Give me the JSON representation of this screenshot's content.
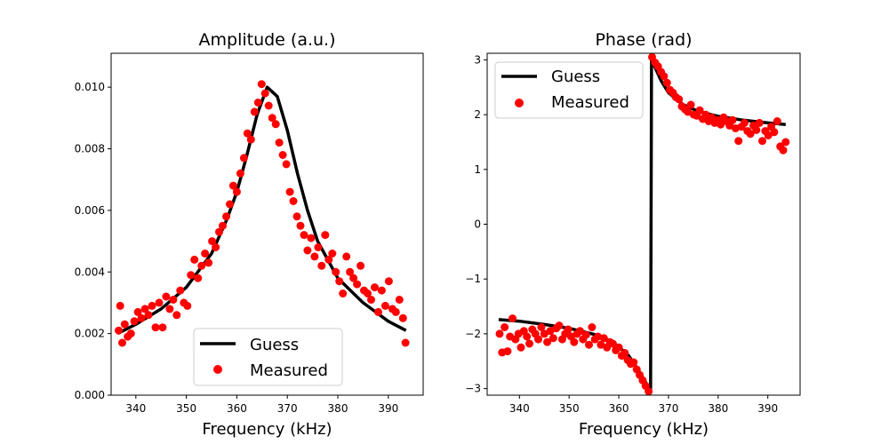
{
  "chart_data": [
    {
      "type": "scatter",
      "title": "Amplitude (a.u.)",
      "xlabel": "Frequency (kHz)",
      "ylabel": "",
      "xlim": [
        335.1,
        396.9
      ],
      "ylim": [
        0,
        0.0111
      ],
      "xticks": [
        340,
        350,
        360,
        370,
        380,
        390
      ],
      "xtick_labels": [
        "340",
        "350",
        "360",
        "370",
        "380",
        "390"
      ],
      "yticks": [
        0,
        0.002,
        0.004,
        0.006,
        0.008,
        0.01
      ],
      "ytick_labels": [
        "0.000",
        "0.002",
        "0.004",
        "0.006",
        "0.008",
        "0.010"
      ],
      "grid": false,
      "legend": {
        "position": "bottom-center",
        "entries": [
          "Guess",
          "Measured"
        ]
      },
      "series": [
        {
          "name": "Guess",
          "kind": "line",
          "color": "#000000",
          "x": [
            336.4,
            340,
            345,
            350,
            355,
            358,
            360,
            362,
            364,
            366,
            368,
            370,
            372,
            374,
            376,
            380,
            385,
            390,
            393.5
          ],
          "y": [
            0.002,
            0.0023,
            0.0028,
            0.0035,
            0.0046,
            0.0057,
            0.0066,
            0.0078,
            0.0091,
            0.01,
            0.0097,
            0.0086,
            0.0072,
            0.006,
            0.005,
            0.0038,
            0.003,
            0.0024,
            0.0021
          ]
        },
        {
          "name": "Measured",
          "kind": "scatter",
          "color": "#ff0000",
          "x": [
            336.6,
            336.9,
            337.3,
            337.8,
            338.4,
            339.0,
            339.7,
            340.4,
            341.1,
            341.8,
            342.5,
            343.2,
            343.9,
            344.6,
            345.3,
            346.0,
            346.7,
            347.4,
            348.1,
            348.8,
            349.5,
            350.2,
            350.9,
            351.6,
            352.3,
            353.0,
            353.7,
            354.4,
            355.1,
            355.8,
            356.5,
            357.2,
            357.9,
            358.6,
            359.3,
            360.0,
            360.7,
            361.4,
            362.1,
            362.8,
            363.5,
            364.2,
            364.9,
            365.6,
            366.3,
            367.0,
            367.7,
            368.4,
            369.1,
            369.8,
            370.5,
            371.2,
            371.9,
            372.6,
            373.3,
            374.0,
            374.7,
            375.4,
            376.1,
            376.8,
            377.5,
            378.2,
            378.9,
            379.6,
            380.3,
            381.0,
            381.7,
            382.4,
            383.1,
            383.8,
            384.5,
            385.2,
            385.9,
            386.6,
            387.3,
            388.0,
            388.7,
            389.4,
            390.1,
            390.8,
            391.5,
            392.2,
            392.9,
            393.4
          ],
          "y": [
            0.0021,
            0.0029,
            0.0017,
            0.0023,
            0.0019,
            0.002,
            0.0024,
            0.0027,
            0.0025,
            0.0028,
            0.0026,
            0.0029,
            0.0022,
            0.003,
            0.0022,
            0.0032,
            0.0028,
            0.0031,
            0.0026,
            0.0034,
            0.003,
            0.0029,
            0.0039,
            0.0044,
            0.0038,
            0.0042,
            0.0046,
            0.0043,
            0.005,
            0.0048,
            0.0053,
            0.0055,
            0.0058,
            0.0062,
            0.0068,
            0.0066,
            0.0072,
            0.0077,
            0.0085,
            0.0083,
            0.0092,
            0.0095,
            0.0101,
            0.0098,
            0.0094,
            0.009,
            0.0088,
            0.0082,
            0.0078,
            0.0075,
            0.0066,
            0.0063,
            0.0058,
            0.0055,
            0.0052,
            0.0047,
            0.0051,
            0.0045,
            0.0048,
            0.0042,
            0.0052,
            0.0044,
            0.0046,
            0.004,
            0.0037,
            0.0033,
            0.0045,
            0.004,
            0.0038,
            0.0036,
            0.0042,
            0.0034,
            0.0033,
            0.0031,
            0.0035,
            0.0027,
            0.0034,
            0.0029,
            0.0037,
            0.0028,
            0.0027,
            0.0031,
            0.0025,
            0.0017
          ]
        }
      ]
    },
    {
      "type": "scatter",
      "title": "Phase (rad)",
      "xlabel": "Frequency (kHz)",
      "ylabel": "",
      "xlim": [
        333.5,
        396.5
      ],
      "ylim": [
        -3.12,
        3.12
      ],
      "xticks": [
        340,
        350,
        360,
        370,
        380,
        390
      ],
      "xtick_labels": [
        "340",
        "350",
        "360",
        "370",
        "380",
        "390"
      ],
      "yticks": [
        -3,
        -2,
        -1,
        0,
        1,
        2,
        3
      ],
      "ytick_labels": [
        "−3",
        "−2",
        "−1",
        "0",
        "1",
        "2",
        "3"
      ],
      "grid": false,
      "legend": {
        "position": "top-left",
        "entries": [
          "Guess",
          "Measured"
        ]
      },
      "series": [
        {
          "name": "Guess",
          "kind": "line",
          "color": "#000000",
          "x": [
            335.8,
            340,
            345,
            350,
            355,
            358,
            360,
            362,
            364,
            365.5,
            366.2,
            366.4,
            366.6,
            367.3,
            368.5,
            370,
            373,
            376,
            380,
            385,
            390,
            393.6
          ],
          "y": [
            -1.74,
            -1.77,
            -1.83,
            -1.9,
            -2.01,
            -2.12,
            -2.24,
            -2.4,
            -2.67,
            -2.9,
            -3.02,
            -3.08,
            3.08,
            2.86,
            2.62,
            2.4,
            2.18,
            2.06,
            1.97,
            1.9,
            1.85,
            1.82
          ]
        },
        {
          "name": "Measured",
          "kind": "scatter",
          "color": "#ff0000",
          "x": [
            336.0,
            336.5,
            337.0,
            337.6,
            338.1,
            338.6,
            339.2,
            339.8,
            340.3,
            340.9,
            341.5,
            342.0,
            342.6,
            343.2,
            343.8,
            344.4,
            345.0,
            345.6,
            346.2,
            346.8,
            347.4,
            348.0,
            348.6,
            349.2,
            349.8,
            350.4,
            351.0,
            351.6,
            352.2,
            352.8,
            353.4,
            354.0,
            354.6,
            355.2,
            355.8,
            356.4,
            357.0,
            357.6,
            358.2,
            358.8,
            359.4,
            360.0,
            360.6,
            361.2,
            361.8,
            362.4,
            363.0,
            363.6,
            364.2,
            364.8,
            365.4,
            366.0,
            366.7,
            367.3,
            367.9,
            368.5,
            369.1,
            369.7,
            370.3,
            370.9,
            371.5,
            372.1,
            372.7,
            373.3,
            373.9,
            374.5,
            375.1,
            375.7,
            376.3,
            376.9,
            377.5,
            378.1,
            378.7,
            379.3,
            379.9,
            380.5,
            381.1,
            381.7,
            382.3,
            382.9,
            383.5,
            384.1,
            384.7,
            385.3,
            385.9,
            386.5,
            387.1,
            387.7,
            388.3,
            388.9,
            389.5,
            390.1,
            390.7,
            391.3,
            391.9,
            392.5,
            393.1,
            393.6
          ],
          "y": [
            -2.0,
            -2.34,
            -1.88,
            -2.32,
            -2.05,
            -1.72,
            -2.1,
            -2.0,
            -2.25,
            -1.95,
            -2.05,
            -2.18,
            -1.92,
            -2.0,
            -2.1,
            -1.88,
            -2.0,
            -2.15,
            -1.95,
            -2.08,
            -1.9,
            -1.85,
            -2.1,
            -2.0,
            -1.92,
            -2.05,
            -2.15,
            -2.0,
            -1.95,
            -2.1,
            -2.02,
            -2.2,
            -1.88,
            -2.1,
            -2.05,
            -2.2,
            -2.08,
            -2.25,
            -2.15,
            -2.18,
            -2.3,
            -2.25,
            -2.4,
            -2.35,
            -2.48,
            -2.55,
            -2.52,
            -2.65,
            -2.75,
            -2.85,
            -2.95,
            -3.05,
            3.05,
            2.95,
            2.88,
            2.78,
            2.7,
            2.58,
            2.45,
            2.4,
            2.32,
            2.28,
            2.15,
            2.1,
            2.05,
            2.18,
            2.0,
            1.98,
            2.08,
            1.92,
            2.0,
            1.88,
            1.95,
            1.85,
            1.9,
            1.82,
            1.95,
            1.88,
            1.8,
            1.9,
            1.75,
            1.52,
            1.78,
            1.85,
            1.7,
            1.65,
            1.8,
            1.72,
            1.85,
            1.52,
            1.7,
            1.62,
            1.78,
            1.68,
            1.88,
            1.42,
            1.35,
            1.5
          ]
        }
      ]
    }
  ]
}
